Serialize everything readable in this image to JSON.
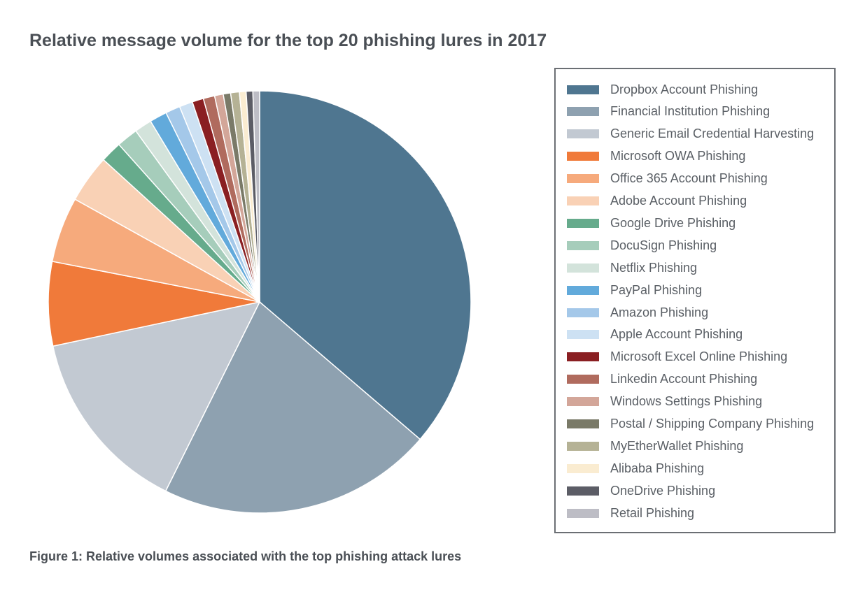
{
  "chart_data": {
    "type": "pie",
    "title": "Relative message volume for the top 20 phishing lures in 2017",
    "caption": "Figure 1: Relative volumes associated with the top phishing attack lures",
    "legend_position": "right",
    "series": [
      {
        "name": "Dropbox Account Phishing",
        "value": 35.5,
        "color": "#4f7690"
      },
      {
        "name": "Financial Institution Phishing",
        "value": 20.6,
        "color": "#8ea1b0"
      },
      {
        "name": "Generic Email Credential Harvesting",
        "value": 14.0,
        "color": "#c2c9d2"
      },
      {
        "name": "Microsoft OWA Phishing",
        "value": 6.3,
        "color": "#f07a3a"
      },
      {
        "name": "Office 365 Account Phishing",
        "value": 4.9,
        "color": "#f6aa7c"
      },
      {
        "name": "Adobe Account Phishing",
        "value": 3.6,
        "color": "#f9d1b5"
      },
      {
        "name": "Google Drive Phishing",
        "value": 1.6,
        "color": "#66ab8c"
      },
      {
        "name": "DocuSign Phishing",
        "value": 1.6,
        "color": "#a6cdbb"
      },
      {
        "name": "Netflix Phishing",
        "value": 1.3,
        "color": "#d3e3db"
      },
      {
        "name": "PayPal Phishing",
        "value": 1.3,
        "color": "#62aadb"
      },
      {
        "name": "Amazon Phishing",
        "value": 1.1,
        "color": "#a4c8e9"
      },
      {
        "name": "Apple Account Phishing",
        "value": 1.0,
        "color": "#cde1f3"
      },
      {
        "name": "Microsoft Excel Online Phishing",
        "value": 0.85,
        "color": "#8a1f22"
      },
      {
        "name": "Linkedin Account Phishing",
        "value": 0.85,
        "color": "#b06b5e"
      },
      {
        "name": "Windows Settings Phishing",
        "value": 0.65,
        "color": "#d3a699"
      },
      {
        "name": "Postal / Shipping Company Phishing",
        "value": 0.55,
        "color": "#7a7a68"
      },
      {
        "name": "MyEtherWallet Phishing",
        "value": 0.65,
        "color": "#b5b295"
      },
      {
        "name": "Alibaba Phishing",
        "value": 0.5,
        "color": "#faecd1"
      },
      {
        "name": "OneDrive Phishing",
        "value": 0.5,
        "color": "#5c5d66"
      },
      {
        "name": "Retail Phishing",
        "value": 0.5,
        "color": "#bdbdc5"
      }
    ]
  }
}
